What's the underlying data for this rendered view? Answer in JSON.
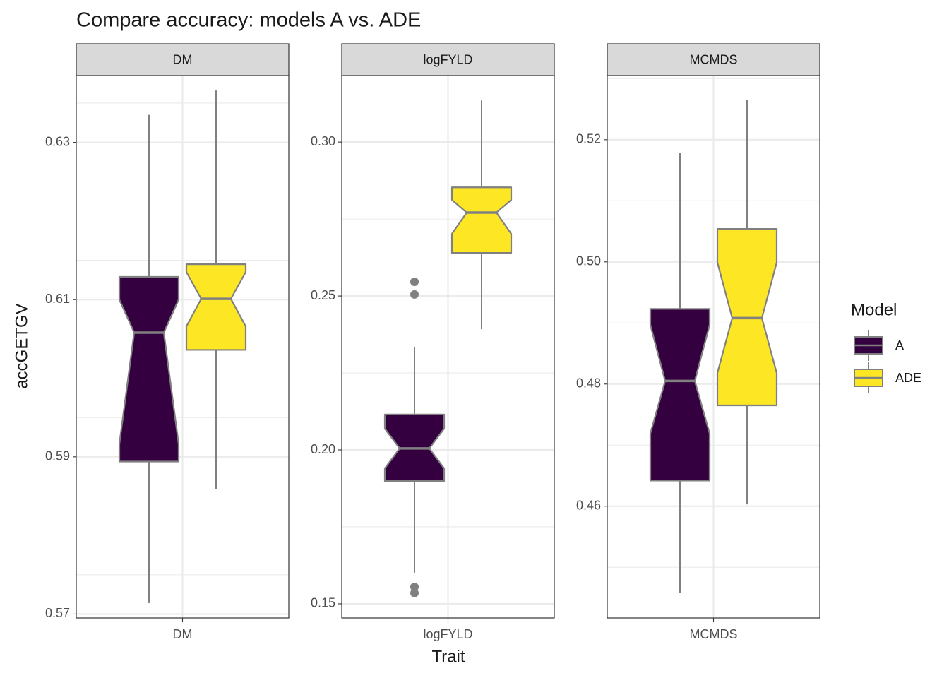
{
  "title": "Compare accuracy: models A vs. ADE",
  "x_label": "Trait",
  "y_label": "accGETGV",
  "legend": {
    "title": "Model",
    "position": "right"
  },
  "chart_data": [
    {
      "type": "boxplot",
      "facet": "DM",
      "categories": [
        "DM"
      ],
      "notch": true,
      "ylim": [
        0.5695,
        0.6385
      ],
      "yticks": [
        0.57,
        0.59,
        0.61,
        0.63
      ],
      "minor_yticks": [
        0.575,
        0.595,
        0.615,
        0.635
      ],
      "grid": true,
      "series": [
        {
          "name": "A",
          "color": "#35003f",
          "min": 0.5714,
          "q1": 0.5894,
          "median": 0.6058,
          "q3": 0.6129,
          "max": 0.6335,
          "notch_low": 0.5916,
          "notch_high": 0.61
        },
        {
          "name": "ADE",
          "color": "#fde725",
          "min": 0.5859,
          "q1": 0.6036,
          "median": 0.6101,
          "q3": 0.6145,
          "max": 0.6366,
          "notch_low": 0.6066,
          "notch_high": 0.6135
        }
      ]
    },
    {
      "type": "boxplot",
      "facet": "logFYLD",
      "categories": [
        "logFYLD"
      ],
      "notch": true,
      "ylim": [
        0.1454,
        0.3216
      ],
      "yticks": [
        {
          "value": 0.15,
          "label": "0.15"
        },
        {
          "value": 0.2,
          "label": "0.20"
        },
        {
          "value": 0.25,
          "label": "0.25"
        },
        {
          "value": 0.3,
          "label": "0.30"
        }
      ],
      "minor_yticks": [
        0.175,
        0.225,
        0.275
      ],
      "grid": true,
      "series": [
        {
          "name": "A",
          "color": "#35003f",
          "min": 0.1601,
          "q1": 0.1899,
          "median": 0.2005,
          "q3": 0.2115,
          "max": 0.2333,
          "notch_low": 0.194,
          "notch_high": 0.2069,
          "outliers": [
            0.2546,
            0.2505,
            0.1555,
            0.1535
          ]
        },
        {
          "name": "ADE",
          "color": "#fde725",
          "min": 0.2392,
          "q1": 0.264,
          "median": 0.2771,
          "q3": 0.2853,
          "max": 0.3135,
          "notch_low": 0.2702,
          "notch_high": 0.2812
        }
      ]
    },
    {
      "type": "boxplot",
      "facet": "MCMDS",
      "categories": [
        "MCMDS"
      ],
      "notch": true,
      "ylim": [
        0.4417,
        0.5305
      ],
      "yticks": [
        0.46,
        0.48,
        {
          "value": 0.5,
          "label": "0.50"
        },
        0.52
      ],
      "minor_yticks": [
        0.45,
        0.47,
        0.49,
        0.51,
        0.53
      ],
      "grid": true,
      "series": [
        {
          "name": "A",
          "color": "#35003f",
          "min": 0.4458,
          "q1": 0.4642,
          "median": 0.4805,
          "q3": 0.4923,
          "max": 0.5178,
          "notch_low": 0.4719,
          "notch_high": 0.4897
        },
        {
          "name": "ADE",
          "color": "#fde725",
          "min": 0.4603,
          "q1": 0.4765,
          "median": 0.4908,
          "q3": 0.5054,
          "max": 0.5265,
          "notch_low": 0.4818,
          "notch_high": 0.4999
        }
      ]
    }
  ]
}
